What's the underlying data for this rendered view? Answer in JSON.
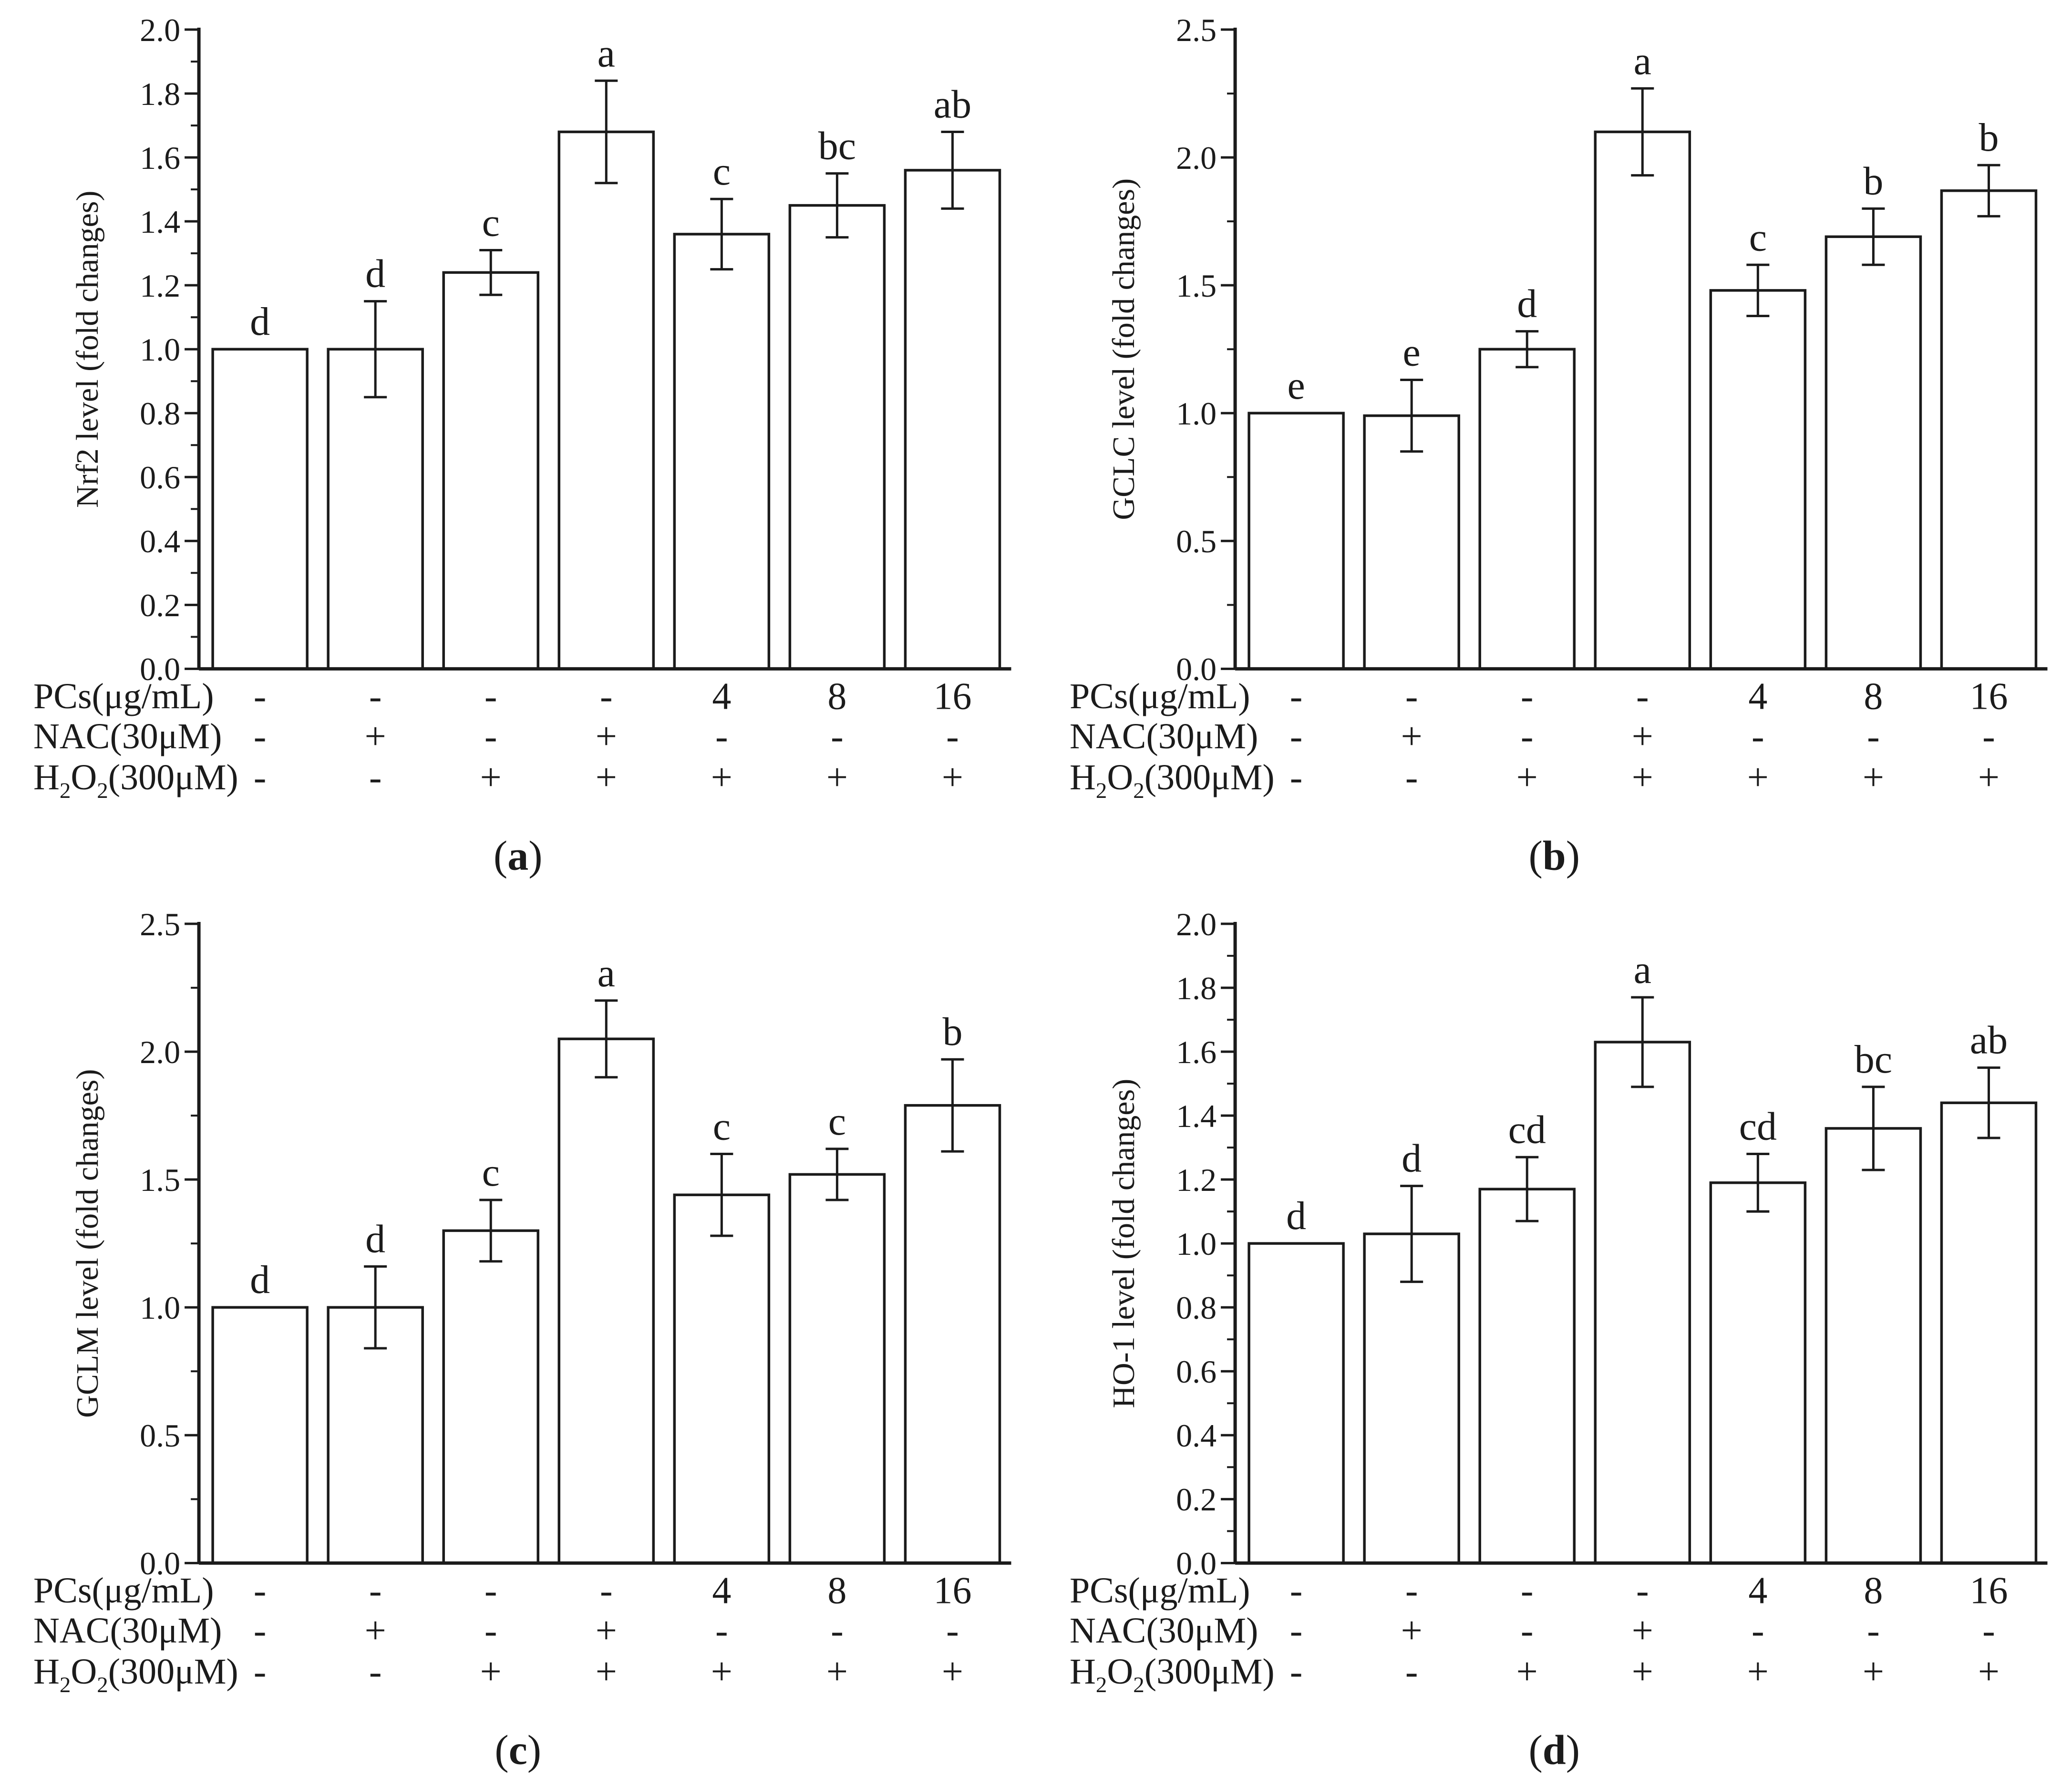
{
  "figure": {
    "background": "#ffffff",
    "ink_color": "#1b1b1b",
    "bar_fill": "#ffffff",
    "grid": "off",
    "legend": "none",
    "panel_captions": [
      "(a)",
      "(b)",
      "(c)",
      "(d)"
    ]
  },
  "chart_data": [
    {
      "type": "bar",
      "panel_letter": "a",
      "caption": "(a)",
      "title": "",
      "xlabel": "",
      "ylabel": "Nrf2 level (fold changes)",
      "ylim": [
        0,
        2.0
      ],
      "ytick_major": 0.2,
      "ytick_minor": 0.1,
      "ytick_labels": [
        "0.0",
        "0.2",
        "0.4",
        "0.6",
        "0.8",
        "1.0",
        "1.2",
        "1.4",
        "1.6",
        "1.8",
        "2.0"
      ],
      "values": [
        1.0,
        1.0,
        1.24,
        1.68,
        1.36,
        1.45,
        1.56
      ],
      "errors": [
        0,
        0.15,
        0.07,
        0.16,
        0.11,
        0.1,
        0.12
      ],
      "sig_letters": [
        "d",
        "d",
        "c",
        "a",
        "c",
        "bc",
        "ab"
      ],
      "treatment_rows": [
        {
          "label": "PCs(μg/mL)",
          "cells": [
            "-",
            "-",
            "-",
            "-",
            "4",
            "8",
            "16"
          ]
        },
        {
          "label": "NAC(30μM)",
          "cells": [
            "-",
            "+",
            "-",
            "+",
            "-",
            "-",
            "-"
          ]
        },
        {
          "label": "H₂O₂(300μM)",
          "label_parts": [
            {
              "t": "H"
            },
            {
              "t": "2",
              "sub": true
            },
            {
              "t": "O"
            },
            {
              "t": "2",
              "sub": true
            },
            {
              "t": "(300μM)"
            }
          ],
          "cells": [
            "-",
            "-",
            "+",
            "+",
            "+",
            "+",
            "+"
          ]
        }
      ]
    },
    {
      "type": "bar",
      "panel_letter": "b",
      "caption": "(b)",
      "title": "",
      "xlabel": "",
      "ylabel": "GCLC level (fold changes)",
      "ylim": [
        0,
        2.5
      ],
      "ytick_major": 0.5,
      "ytick_minor": 0.25,
      "ytick_labels": [
        "0.0",
        "0.5",
        "1.0",
        "1.5",
        "2.0",
        "2.5"
      ],
      "values": [
        1.0,
        0.99,
        1.25,
        2.1,
        1.48,
        1.69,
        1.87
      ],
      "errors": [
        0,
        0.14,
        0.07,
        0.17,
        0.1,
        0.11,
        0.1
      ],
      "sig_letters": [
        "e",
        "e",
        "d",
        "a",
        "c",
        "b",
        "b"
      ],
      "treatment_rows": [
        {
          "label": "PCs(μg/mL)",
          "cells": [
            "-",
            "-",
            "-",
            "-",
            "4",
            "8",
            "16"
          ]
        },
        {
          "label": "NAC(30μM)",
          "cells": [
            "-",
            "+",
            "-",
            "+",
            "-",
            "-",
            "-"
          ]
        },
        {
          "label": "H₂O₂(300μM)",
          "label_parts": [
            {
              "t": "H"
            },
            {
              "t": "2",
              "sub": true
            },
            {
              "t": "O"
            },
            {
              "t": "2",
              "sub": true
            },
            {
              "t": "(300μM)"
            }
          ],
          "cells": [
            "-",
            "-",
            "+",
            "+",
            "+",
            "+",
            "+"
          ]
        }
      ]
    },
    {
      "type": "bar",
      "panel_letter": "c",
      "caption": "(c)",
      "title": "",
      "xlabel": "",
      "ylabel": "GCLM level (fold changes)",
      "ylim": [
        0,
        2.5
      ],
      "ytick_major": 0.5,
      "ytick_minor": 0.25,
      "ytick_labels": [
        "0.0",
        "0.5",
        "1.0",
        "1.5",
        "2.0",
        "2.5"
      ],
      "values": [
        1.0,
        1.0,
        1.3,
        2.05,
        1.44,
        1.52,
        1.79
      ],
      "errors": [
        0,
        0.16,
        0.12,
        0.15,
        0.16,
        0.1,
        0.18
      ],
      "sig_letters": [
        "d",
        "d",
        "c",
        "a",
        "c",
        "c",
        "b"
      ],
      "treatment_rows": [
        {
          "label": "PCs(μg/mL)",
          "cells": [
            "-",
            "-",
            "-",
            "-",
            "4",
            "8",
            "16"
          ]
        },
        {
          "label": "NAC(30μM)",
          "cells": [
            "-",
            "+",
            "-",
            "+",
            "-",
            "-",
            "-"
          ]
        },
        {
          "label": "H₂O₂(300μM)",
          "label_parts": [
            {
              "t": "H"
            },
            {
              "t": "2",
              "sub": true
            },
            {
              "t": "O"
            },
            {
              "t": "2",
              "sub": true
            },
            {
              "t": "(300μM)"
            }
          ],
          "cells": [
            "-",
            "-",
            "+",
            "+",
            "+",
            "+",
            "+"
          ]
        }
      ]
    },
    {
      "type": "bar",
      "panel_letter": "d",
      "caption": "(d)",
      "title": "",
      "xlabel": "",
      "ylabel": "HO-1 level (fold changes)",
      "ylim": [
        0,
        2.0
      ],
      "ytick_major": 0.2,
      "ytick_minor": 0.1,
      "ytick_labels": [
        "0.0",
        "0.2",
        "0.4",
        "0.6",
        "0.8",
        "1.0",
        "1.2",
        "1.4",
        "1.6",
        "1.8",
        "2.0"
      ],
      "values": [
        1.0,
        1.03,
        1.17,
        1.63,
        1.19,
        1.36,
        1.44
      ],
      "errors": [
        0,
        0.15,
        0.1,
        0.14,
        0.09,
        0.13,
        0.11
      ],
      "sig_letters": [
        "d",
        "d",
        "cd",
        "a",
        "cd",
        "bc",
        "ab"
      ],
      "treatment_rows": [
        {
          "label": "PCs(μg/mL)",
          "cells": [
            "-",
            "-",
            "-",
            "-",
            "4",
            "8",
            "16"
          ]
        },
        {
          "label": "NAC(30μM)",
          "cells": [
            "-",
            "+",
            "-",
            "+",
            "-",
            "-",
            "-"
          ]
        },
        {
          "label": "H₂O₂(300μM)",
          "label_parts": [
            {
              "t": "H"
            },
            {
              "t": "2",
              "sub": true
            },
            {
              "t": "O"
            },
            {
              "t": "2",
              "sub": true
            },
            {
              "t": "(300μM)"
            }
          ],
          "cells": [
            "-",
            "-",
            "+",
            "+",
            "+",
            "+",
            "+"
          ]
        }
      ]
    }
  ]
}
